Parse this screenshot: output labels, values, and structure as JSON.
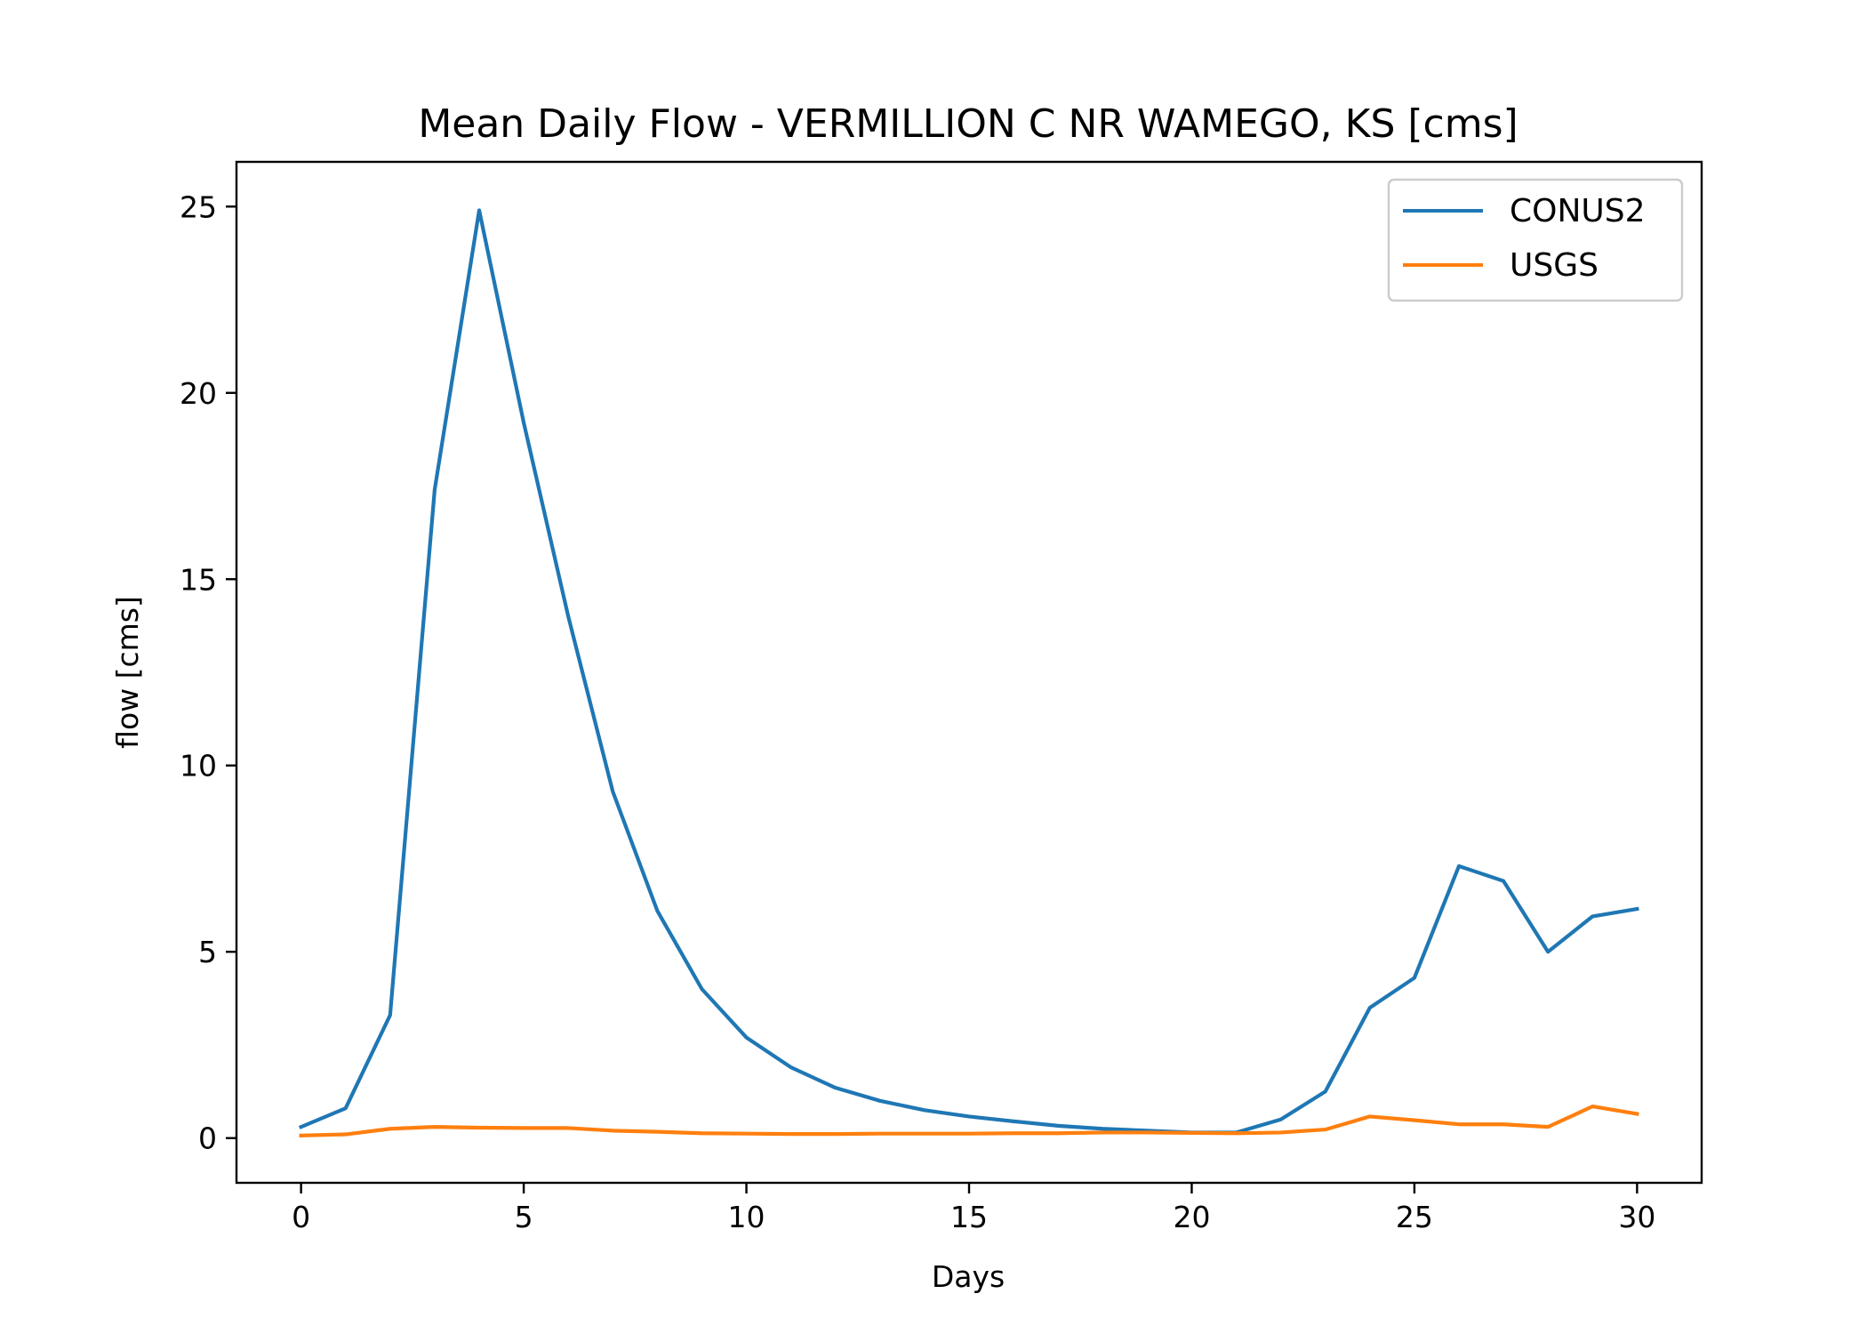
{
  "chart_data": {
    "type": "line",
    "title": "Mean Daily Flow - VERMILLION C NR WAMEGO, KS [cms]",
    "xlabel": "Days",
    "ylabel": "flow [cms]",
    "xlim": [
      -1.45,
      31.45
    ],
    "ylim": [
      -1.2,
      26.2
    ],
    "xticks": [
      0,
      5,
      10,
      15,
      20,
      25,
      30
    ],
    "yticks": [
      0,
      5,
      10,
      15,
      20,
      25
    ],
    "grid": false,
    "legend": "upper right",
    "x": [
      0,
      1,
      2,
      3,
      4,
      5,
      6,
      7,
      8,
      9,
      10,
      11,
      12,
      13,
      14,
      15,
      16,
      17,
      18,
      19,
      20,
      21,
      22,
      23,
      24,
      25,
      26,
      27,
      28,
      29,
      30
    ],
    "series": [
      {
        "name": "CONUS2",
        "color": "#1f77b4",
        "values": [
          0.3,
          0.8,
          3.3,
          17.4,
          24.9,
          19.2,
          14.0,
          9.3,
          6.1,
          4.0,
          2.7,
          1.9,
          1.35,
          1.0,
          0.75,
          0.58,
          0.45,
          0.33,
          0.25,
          0.2,
          0.15,
          0.15,
          0.5,
          1.25,
          3.5,
          4.3,
          7.3,
          6.9,
          5.0,
          5.95,
          6.15
        ]
      },
      {
        "name": "USGS",
        "color": "#ff7f0e",
        "values": [
          0.07,
          0.1,
          0.25,
          0.3,
          0.28,
          0.27,
          0.27,
          0.2,
          0.17,
          0.13,
          0.12,
          0.11,
          0.11,
          0.12,
          0.12,
          0.12,
          0.13,
          0.13,
          0.15,
          0.15,
          0.14,
          0.13,
          0.15,
          0.23,
          0.58,
          0.48,
          0.37,
          0.37,
          0.3,
          0.85,
          0.65
        ]
      }
    ]
  }
}
